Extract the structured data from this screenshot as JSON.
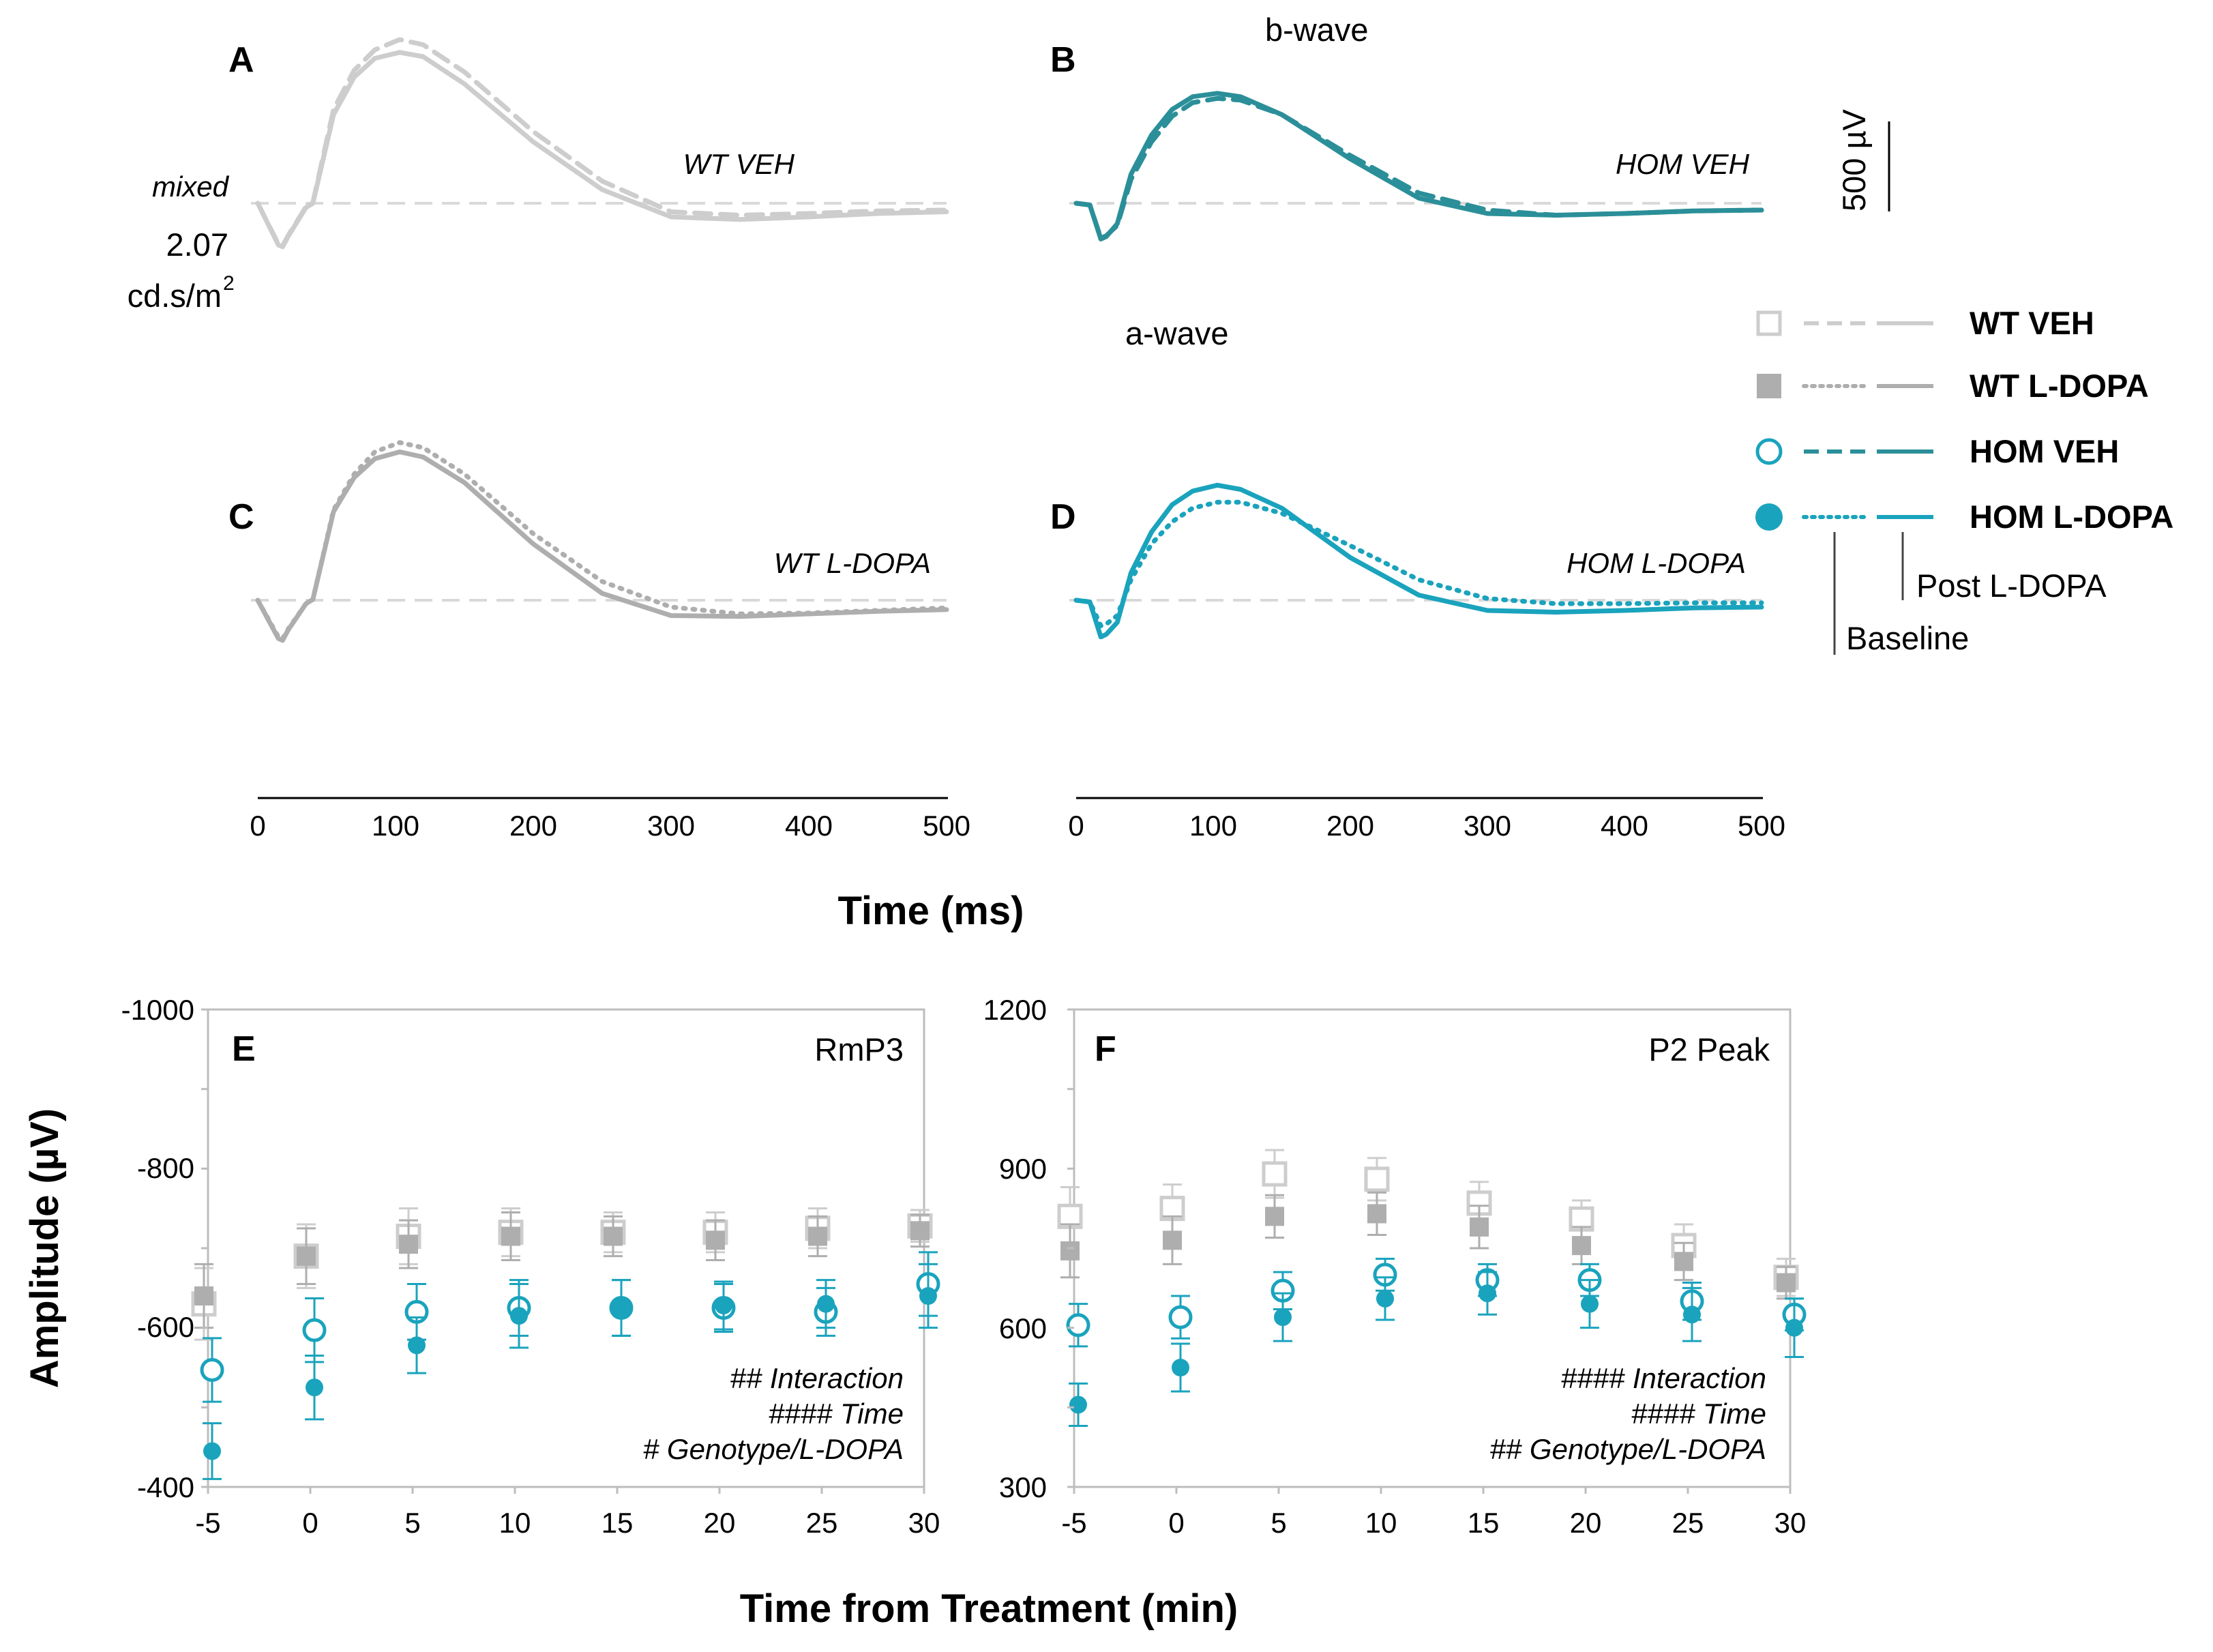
{
  "colors": {
    "wt_veh": "#cdcdcd",
    "wt_ldopa": "#aeaeae",
    "hom_veh": "#2b8f99",
    "hom_ldopa": "#1aa3bd",
    "baseline_dash": "#d9d9d9"
  },
  "erg": {
    "stimulus_label": "mixed",
    "intensity_value": "2.07",
    "intensity_unit": "cd.s/m",
    "intensity_sup": "2",
    "scale_bar_label": "500 µV",
    "b_wave_label": "b-wave",
    "a_wave_label": "a-wave",
    "x_axis_title": "Time (ms)",
    "x_ticks": [
      "0",
      "100",
      "200",
      "300",
      "400",
      "500"
    ],
    "panels": [
      {
        "letter": "A",
        "title": "WT VEH"
      },
      {
        "letter": "B",
        "title": "HOM VEH"
      },
      {
        "letter": "C",
        "title": "WT L-DOPA"
      },
      {
        "letter": "D",
        "title": "HOM L-DOPA"
      }
    ]
  },
  "legend": {
    "items": [
      {
        "label": "WT VEH"
      },
      {
        "label": "WT L-DOPA"
      },
      {
        "label": "HOM VEH"
      },
      {
        "label": "HOM L-DOPA"
      }
    ],
    "post_label": "Post L-DOPA",
    "baseline_label": "Baseline"
  },
  "bottom": {
    "x_axis_title": "Time from Treatment (min)",
    "y_axis_title": "Amplitude (µV)"
  },
  "chart_data": [
    {
      "type": "line",
      "title": "WT VEH",
      "xlabel": "Time (ms)",
      "xlim": [
        0,
        500
      ],
      "series": [
        {
          "name": "Baseline",
          "style": "dashed",
          "points": [
            [
              0,
              0
            ],
            [
              15,
              -240
            ],
            [
              18,
              -250
            ],
            [
              22,
              -190
            ],
            [
              35,
              -20
            ],
            [
              40,
              5
            ],
            [
              55,
              550
            ],
            [
              70,
              780
            ],
            [
              85,
              900
            ],
            [
              103,
              960
            ],
            [
              120,
              930
            ],
            [
              150,
              770
            ],
            [
              200,
              420
            ],
            [
              250,
              130
            ],
            [
              300,
              -50
            ],
            [
              350,
              -70
            ],
            [
              400,
              -60
            ],
            [
              450,
              -45
            ],
            [
              500,
              -40
            ]
          ]
        },
        {
          "name": "Post L-DOPA",
          "style": "solid",
          "points": [
            [
              0,
              0
            ],
            [
              15,
              -245
            ],
            [
              18,
              -255
            ],
            [
              22,
              -195
            ],
            [
              35,
              -25
            ],
            [
              40,
              0
            ],
            [
              55,
              520
            ],
            [
              70,
              740
            ],
            [
              85,
              850
            ],
            [
              103,
              885
            ],
            [
              120,
              860
            ],
            [
              150,
              700
            ],
            [
              200,
              360
            ],
            [
              250,
              80
            ],
            [
              300,
              -80
            ],
            [
              350,
              -95
            ],
            [
              400,
              -80
            ],
            [
              450,
              -60
            ],
            [
              500,
              -50
            ]
          ]
        }
      ]
    },
    {
      "type": "line",
      "title": "HOM VEH",
      "xlabel": "Time (ms)",
      "xlim": [
        0,
        500
      ],
      "series": [
        {
          "name": "Baseline",
          "style": "dashed",
          "points": [
            [
              0,
              0
            ],
            [
              10,
              -10
            ],
            [
              18,
              -205
            ],
            [
              22,
              -190
            ],
            [
              30,
              -130
            ],
            [
              40,
              140
            ],
            [
              55,
              360
            ],
            [
              70,
              510
            ],
            [
              85,
              590
            ],
            [
              103,
              615
            ],
            [
              120,
              605
            ],
            [
              150,
              520
            ],
            [
              200,
              280
            ],
            [
              250,
              60
            ],
            [
              300,
              -40
            ],
            [
              350,
              -70
            ],
            [
              400,
              -60
            ],
            [
              450,
              -45
            ],
            [
              500,
              -40
            ]
          ]
        },
        {
          "name": "Post L-DOPA",
          "style": "solid",
          "points": [
            [
              0,
              0
            ],
            [
              10,
              -10
            ],
            [
              18,
              -210
            ],
            [
              22,
              -195
            ],
            [
              30,
              -120
            ],
            [
              40,
              170
            ],
            [
              55,
              400
            ],
            [
              70,
              550
            ],
            [
              85,
              625
            ],
            [
              103,
              645
            ],
            [
              120,
              625
            ],
            [
              150,
              520
            ],
            [
              200,
              260
            ],
            [
              250,
              30
            ],
            [
              300,
              -60
            ],
            [
              350,
              -70
            ],
            [
              400,
              -60
            ],
            [
              450,
              -45
            ],
            [
              500,
              -40
            ]
          ]
        }
      ]
    },
    {
      "type": "line",
      "title": "WT L-DOPA",
      "xlabel": "Time (ms)",
      "xlim": [
        0,
        500
      ],
      "series": [
        {
          "name": "Baseline",
          "style": "dotted",
          "points": [
            [
              0,
              0
            ],
            [
              15,
              -215
            ],
            [
              18,
              -225
            ],
            [
              22,
              -170
            ],
            [
              35,
              -20
            ],
            [
              40,
              5
            ],
            [
              55,
              530
            ],
            [
              70,
              740
            ],
            [
              85,
              870
            ],
            [
              103,
              925
            ],
            [
              120,
              895
            ],
            [
              150,
              740
            ],
            [
              200,
              390
            ],
            [
              250,
              110
            ],
            [
              300,
              -40
            ],
            [
              350,
              -80
            ],
            [
              400,
              -75
            ],
            [
              450,
              -60
            ],
            [
              500,
              -45
            ]
          ]
        },
        {
          "name": "Post L-DOPA",
          "style": "solid",
          "points": [
            [
              0,
              0
            ],
            [
              15,
              -225
            ],
            [
              18,
              -235
            ],
            [
              22,
              -175
            ],
            [
              35,
              -20
            ],
            [
              40,
              5
            ],
            [
              55,
              520
            ],
            [
              70,
              720
            ],
            [
              85,
              830
            ],
            [
              103,
              870
            ],
            [
              120,
              840
            ],
            [
              150,
              690
            ],
            [
              200,
              330
            ],
            [
              250,
              40
            ],
            [
              300,
              -90
            ],
            [
              350,
              -95
            ],
            [
              400,
              -80
            ],
            [
              450,
              -65
            ],
            [
              500,
              -55
            ]
          ]
        }
      ]
    },
    {
      "type": "line",
      "title": "HOM L-DOPA",
      "xlabel": "Time (ms)",
      "xlim": [
        0,
        500
      ],
      "series": [
        {
          "name": "Baseline",
          "style": "dotted",
          "points": [
            [
              0,
              0
            ],
            [
              10,
              -10
            ],
            [
              18,
              -150
            ],
            [
              22,
              -140
            ],
            [
              30,
              -90
            ],
            [
              40,
              120
            ],
            [
              55,
              330
            ],
            [
              70,
              460
            ],
            [
              85,
              540
            ],
            [
              103,
              575
            ],
            [
              120,
              575
            ],
            [
              150,
              510
            ],
            [
              200,
              320
            ],
            [
              250,
              120
            ],
            [
              300,
              10
            ],
            [
              350,
              -20
            ],
            [
              400,
              -20
            ],
            [
              450,
              -15
            ],
            [
              500,
              -15
            ]
          ]
        },
        {
          "name": "Post L-DOPA",
          "style": "solid",
          "points": [
            [
              0,
              0
            ],
            [
              10,
              -10
            ],
            [
              18,
              -215
            ],
            [
              22,
              -200
            ],
            [
              30,
              -130
            ],
            [
              40,
              160
            ],
            [
              55,
              400
            ],
            [
              70,
              560
            ],
            [
              85,
              640
            ],
            [
              103,
              675
            ],
            [
              120,
              650
            ],
            [
              150,
              540
            ],
            [
              200,
              250
            ],
            [
              250,
              30
            ],
            [
              300,
              -60
            ],
            [
              350,
              -70
            ],
            [
              400,
              -60
            ],
            [
              450,
              -45
            ],
            [
              500,
              -40
            ]
          ]
        }
      ]
    },
    {
      "type": "scatter",
      "letter": "E",
      "title": "RmP3",
      "xlabel": "Time from Treatment (min)",
      "ylabel": "Amplitude (µV)",
      "ylim": [
        -400,
        -1000
      ],
      "y_ticks": [
        "-1000",
        "-800",
        "-600",
        "-400"
      ],
      "x": [
        -5,
        0,
        5,
        10,
        15,
        20,
        25,
        30
      ],
      "x_ticks": [
        "-5",
        "0",
        "5",
        "10",
        "15",
        "20",
        "25",
        "30"
      ],
      "series": [
        {
          "name": "WT VEH",
          "marker": "open-square",
          "values": [
            -630,
            -690,
            -715,
            -720,
            -720,
            -720,
            -725,
            -728
          ],
          "errors": [
            45,
            40,
            35,
            30,
            25,
            25,
            25,
            20
          ]
        },
        {
          "name": "WT L-DOPA",
          "marker": "filled-square",
          "values": [
            -640,
            -690,
            -705,
            -715,
            -715,
            -710,
            -715,
            -722
          ],
          "errors": [
            40,
            35,
            30,
            30,
            25,
            25,
            25,
            20
          ]
        },
        {
          "name": "HOM VEH",
          "marker": "open-circle",
          "values": [
            -547,
            -597,
            -620,
            -625,
            -625,
            -625,
            -620,
            -655
          ],
          "errors": [
            40,
            40,
            35,
            35,
            35,
            30,
            30,
            40
          ]
        },
        {
          "name": "HOM L-DOPA",
          "marker": "filled-circle",
          "values": [
            -445,
            -525,
            -578,
            -615,
            -625,
            -628,
            -630,
            -640
          ],
          "errors": [
            35,
            40,
            35,
            40,
            35,
            30,
            30,
            40
          ]
        }
      ],
      "annotations": [
        "## Interaction",
        "#### Time",
        "# Genotype/L-DOPA"
      ]
    },
    {
      "type": "scatter",
      "letter": "F",
      "title": "P2 Peak",
      "xlabel": "Time from Treatment (min)",
      "ylabel": "Amplitude (µV)",
      "ylim": [
        300,
        1200
      ],
      "y_ticks": [
        "1200",
        "900",
        "600",
        "300"
      ],
      "x": [
        -5,
        0,
        5,
        10,
        15,
        20,
        25,
        30
      ],
      "x_ticks": [
        "-5",
        "0",
        "5",
        "10",
        "15",
        "20",
        "25",
        "30"
      ],
      "series": [
        {
          "name": "WT VEH",
          "marker": "open-square",
          "values": [
            810,
            825,
            890,
            880,
            835,
            805,
            755,
            695
          ],
          "errors": [
            55,
            45,
            45,
            40,
            40,
            35,
            40,
            35
          ]
        },
        {
          "name": "WT L-DOPA",
          "marker": "filled-square",
          "values": [
            745,
            765,
            810,
            815,
            790,
            755,
            725,
            685
          ],
          "errors": [
            50,
            45,
            40,
            40,
            40,
            35,
            35,
            30
          ]
        },
        {
          "name": "HOM VEH",
          "marker": "open-circle",
          "values": [
            605,
            620,
            670,
            700,
            690,
            690,
            650,
            625
          ],
          "errors": [
            40,
            40,
            35,
            30,
            30,
            30,
            35,
            30
          ]
        },
        {
          "name": "HOM L-DOPA",
          "marker": "filled-circle",
          "values": [
            455,
            525,
            620,
            655,
            665,
            645,
            625,
            600
          ],
          "errors": [
            40,
            45,
            45,
            40,
            40,
            45,
            50,
            55
          ]
        }
      ],
      "annotations": [
        "#### Interaction",
        "#### Time",
        "## Genotype/L-DOPA"
      ]
    }
  ]
}
